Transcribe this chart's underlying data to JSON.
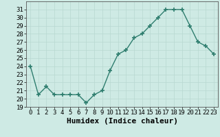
{
  "x": [
    0,
    1,
    2,
    3,
    4,
    5,
    6,
    7,
    8,
    9,
    10,
    11,
    12,
    13,
    14,
    15,
    16,
    17,
    18,
    19,
    20,
    21,
    22,
    23
  ],
  "humidex_values": [
    24,
    20.5,
    21.5,
    20.5,
    20.5,
    20.5,
    20.5,
    19.5,
    20.5,
    21,
    23.5,
    25.5,
    26,
    27.5,
    28,
    29,
    30,
    31,
    31,
    31,
    29,
    27,
    26.5,
    25.5
  ],
  "xlabel": "Humidex (Indice chaleur)",
  "ylim": [
    19,
    32
  ],
  "xlim": [
    -0.5,
    23.5
  ],
  "yticks": [
    19,
    20,
    21,
    22,
    23,
    24,
    25,
    26,
    27,
    28,
    29,
    30,
    31
  ],
  "xticks": [
    0,
    1,
    2,
    3,
    4,
    5,
    6,
    7,
    8,
    9,
    10,
    11,
    12,
    13,
    14,
    15,
    16,
    17,
    18,
    19,
    20,
    21,
    22,
    23
  ],
  "line_color": "#2e7d6e",
  "marker": "+",
  "marker_size": 4,
  "bg_color": "#ceeae4",
  "grid_color": "#b8d8d0",
  "tick_fontsize": 6.5,
  "xlabel_fontsize": 8
}
